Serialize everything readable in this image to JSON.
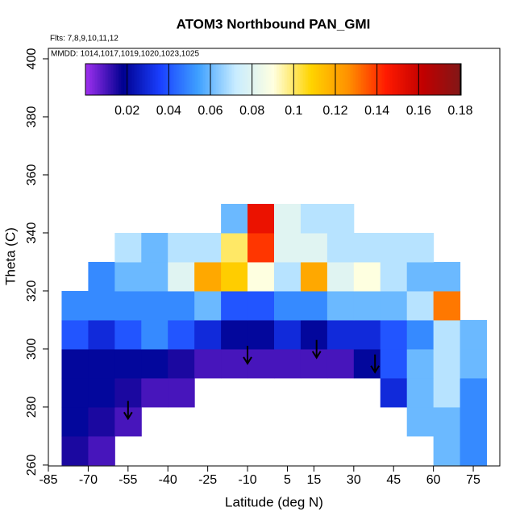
{
  "chart_data": {
    "type": "heatmap",
    "title": "ATOM3 Northbound PAN_GMI",
    "subtitle": "Flts: 7,8,9,10,11,12",
    "annotation": "MMDD: 1014,1017,1019,1020,1023,1025",
    "x_label": "Latitude (deg N)",
    "y_label": "Theta (C)",
    "xlim": [
      -85,
      85
    ],
    "xticks": [
      -85,
      -70,
      -55,
      -40,
      -25,
      -10,
      5,
      15,
      30,
      45,
      60,
      75
    ],
    "ylim": [
      259.7,
      403.6
    ],
    "yticks": [
      260,
      280,
      300,
      320,
      340,
      360,
      380,
      400
    ],
    "xbins": [
      -80,
      -70,
      -60,
      -50,
      -40,
      -30,
      -20,
      -10,
      0,
      10,
      20,
      30,
      40,
      50,
      60,
      70,
      80
    ],
    "ybins": [
      260,
      270,
      280,
      290,
      300,
      310,
      320,
      330,
      340,
      350
    ],
    "values": [
      [
        0.015,
        0.01,
        null,
        null,
        null,
        null,
        null,
        null,
        null,
        null,
        null,
        null,
        null,
        null,
        0.06,
        0.05
      ],
      [
        0.02,
        0.015,
        0.01,
        null,
        null,
        null,
        null,
        null,
        null,
        null,
        null,
        null,
        null,
        0.06,
        0.06,
        0.05
      ],
      [
        0.02,
        0.02,
        0.015,
        0.01,
        0.01,
        null,
        null,
        null,
        null,
        null,
        null,
        null,
        0.03,
        0.06,
        0.07,
        0.05
      ],
      [
        0.02,
        0.02,
        0.02,
        0.02,
        0.015,
        0.01,
        0.01,
        0.01,
        0.01,
        0.01,
        0.01,
        0.02,
        0.04,
        0.06,
        0.07,
        0.06
      ],
      [
        0.04,
        0.03,
        0.04,
        0.05,
        0.04,
        0.03,
        0.02,
        0.02,
        0.03,
        0.02,
        0.03,
        0.03,
        0.04,
        0.05,
        0.07,
        0.06
      ],
      [
        0.05,
        0.05,
        0.05,
        0.05,
        0.05,
        0.06,
        0.04,
        0.04,
        0.05,
        0.05,
        0.06,
        0.06,
        0.06,
        0.07,
        0.13,
        null
      ],
      [
        null,
        0.05,
        0.06,
        0.06,
        0.08,
        0.12,
        0.11,
        0.09,
        0.07,
        0.12,
        0.08,
        0.09,
        0.07,
        0.06,
        0.06,
        null
      ],
      [
        null,
        null,
        0.07,
        0.06,
        0.07,
        0.07,
        0.1,
        0.14,
        0.08,
        0.08,
        0.07,
        0.07,
        0.07,
        0.07,
        null,
        null
      ],
      [
        null,
        null,
        null,
        null,
        null,
        null,
        0.06,
        0.15,
        0.08,
        0.07,
        0.07,
        null,
        null,
        null,
        null,
        null
      ]
    ],
    "arrows": {
      "x": [
        -55,
        -10,
        16,
        38
      ],
      "y": [
        276,
        295,
        297,
        292
      ]
    },
    "colorscale": {
      "lim": [
        0,
        0.1804
      ],
      "ticks": [
        0.02,
        0.04,
        0.06,
        0.08,
        0.1,
        0.12,
        0.14,
        0.16,
        0.18
      ],
      "colors": [
        "#a030f0",
        "#000090",
        "#1a40ff",
        "#3ea0ff",
        "#c8ecff",
        "#ffffe0",
        "#ffd400",
        "#ff9000",
        "#ff1a00",
        "#c00000",
        "#801818"
      ]
    }
  }
}
